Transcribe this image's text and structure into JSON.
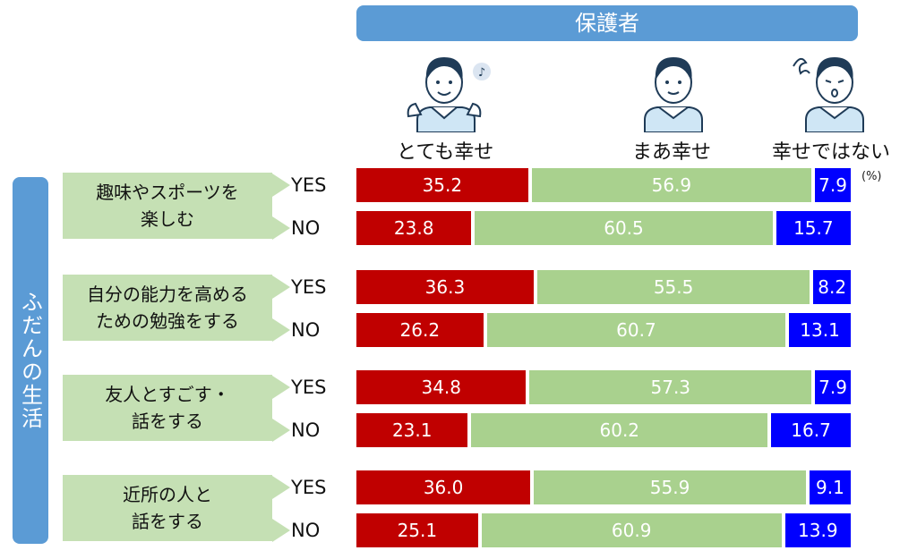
{
  "header": {
    "title": "保護者"
  },
  "columns": [
    {
      "label": "とても幸せ",
      "icon": "happy-person-icon"
    },
    {
      "label": "まあ幸せ",
      "icon": "content-person-icon"
    },
    {
      "label": "幸せではない",
      "icon": "unhappy-person-icon"
    }
  ],
  "unit_label": "(%)",
  "side_label": "ふだんの生活",
  "colors": {
    "very_happy": "#c00000",
    "somewhat_happy": "#a9d18e",
    "not_happy": "#0000ff",
    "accent": "#5b9bd5",
    "category_bg": "#c5e0b4"
  },
  "chart_data": {
    "type": "bar",
    "orientation": "horizontal",
    "stacked": true,
    "title": "保護者",
    "unit": "(%)",
    "series": [
      {
        "name": "とても幸せ",
        "values": [
          35.2,
          23.8,
          36.3,
          26.2,
          34.8,
          23.1,
          36.0,
          25.1
        ]
      },
      {
        "name": "まあ幸せ",
        "values": [
          56.9,
          60.5,
          55.5,
          60.7,
          57.3,
          60.2,
          55.9,
          60.9
        ]
      },
      {
        "name": "幸せではない",
        "values": [
          7.9,
          15.7,
          8.2,
          13.1,
          7.9,
          16.7,
          9.1,
          13.9
        ]
      }
    ],
    "groups": [
      {
        "label": "趣味やスポーツを\n楽しむ",
        "rows": [
          {
            "label": "YES",
            "values": [
              35.2,
              56.9,
              7.9
            ]
          },
          {
            "label": "NO",
            "values": [
              23.8,
              60.5,
              15.7
            ]
          }
        ]
      },
      {
        "label": "自分の能力を高める\nための勉強をする",
        "rows": [
          {
            "label": "YES",
            "values": [
              36.3,
              55.5,
              8.2
            ]
          },
          {
            "label": "NO",
            "values": [
              26.2,
              60.7,
              13.1
            ]
          }
        ]
      },
      {
        "label": "友人とすごす・\n話をする",
        "rows": [
          {
            "label": "YES",
            "values": [
              34.8,
              57.3,
              7.9
            ]
          },
          {
            "label": "NO",
            "values": [
              23.1,
              60.2,
              16.7
            ]
          }
        ]
      },
      {
        "label": "近所の人と\n話をする",
        "rows": [
          {
            "label": "YES",
            "values": [
              36.0,
              55.9,
              9.1
            ]
          },
          {
            "label": "NO",
            "values": [
              25.1,
              60.9,
              13.9
            ]
          }
        ]
      }
    ],
    "xlim": [
      0,
      100
    ],
    "legend": "top",
    "grid": false
  }
}
